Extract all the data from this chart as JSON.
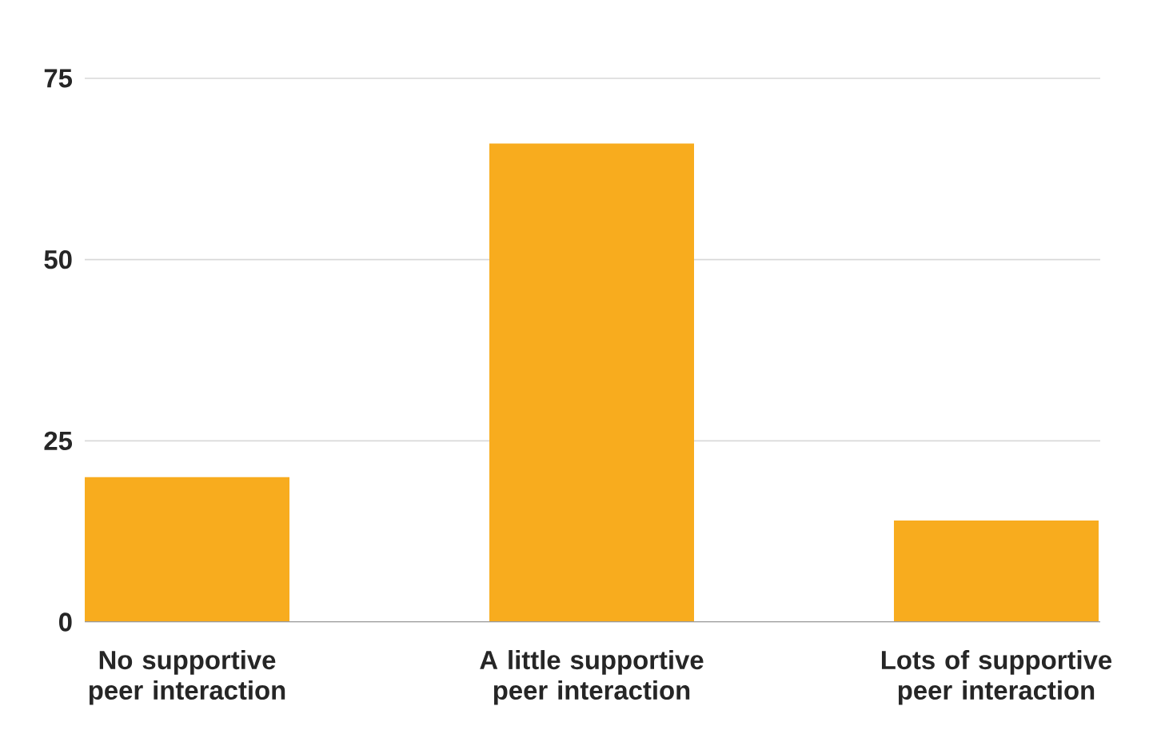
{
  "chart_data": {
    "type": "bar",
    "categories": [
      "No supportive peer interaction",
      "A little supportive peer interaction",
      "Lots of supportive peer interaction"
    ],
    "values": [
      20,
      66,
      14
    ],
    "color": "#f8ac1e",
    "ylim": [
      0,
      75
    ],
    "yticks": [
      0,
      25,
      50,
      75
    ],
    "grid": "y"
  }
}
